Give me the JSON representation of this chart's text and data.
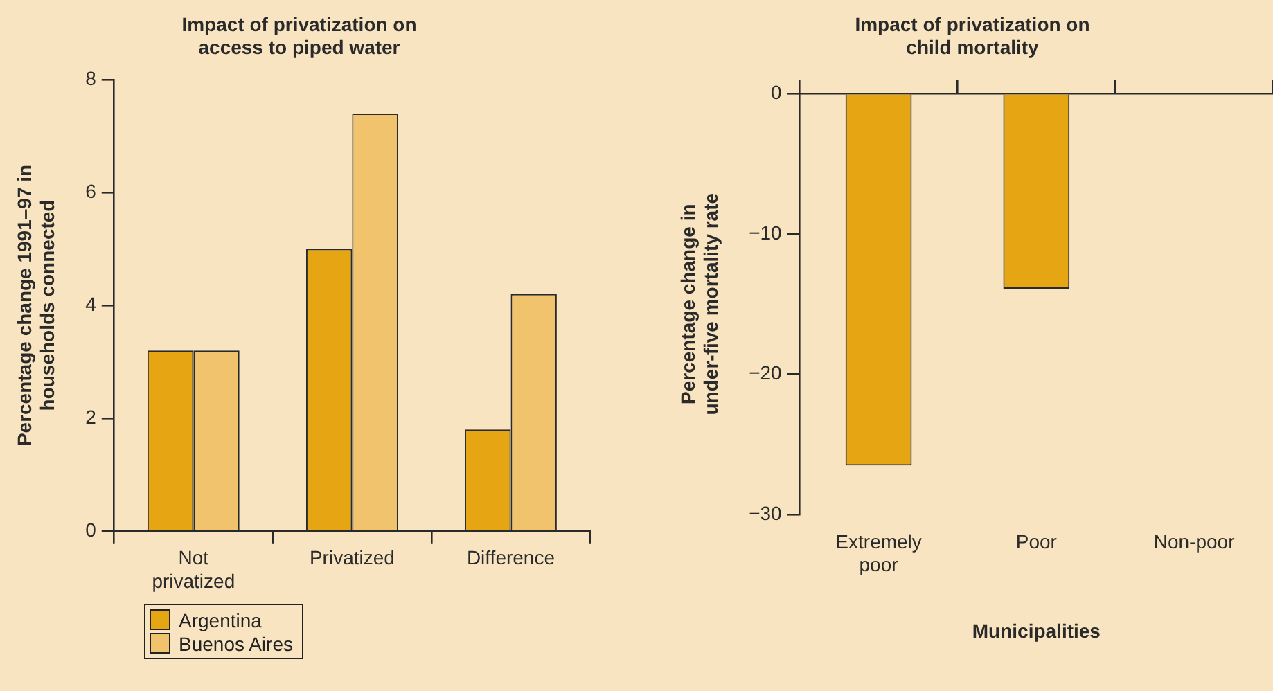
{
  "chart_data": [
    {
      "type": "bar",
      "title": "Impact of privatization on access to piped water",
      "ylabel": "Percentage change 1991–97 in households connected",
      "categories": [
        "Not privatized",
        "Privatized",
        "Difference"
      ],
      "series": [
        {
          "name": "Argentina",
          "color": "#e6a614",
          "values": [
            3.2,
            5.0,
            1.8
          ]
        },
        {
          "name": "Buenos Aires",
          "color": "#f0c36c",
          "values": [
            3.2,
            7.4,
            4.2
          ]
        }
      ],
      "ylim": [
        0,
        8
      ],
      "yticks": [
        0,
        2,
        4,
        6,
        8
      ],
      "legend": "bottom left"
    },
    {
      "type": "bar",
      "title": "Impact of privatization on child mortality",
      "xlabel": "Municipalities",
      "ylabel": "Percentage change in under-five mortality rate",
      "categories": [
        "Extremely poor",
        "Poor",
        "Non-poor"
      ],
      "values": [
        -26.5,
        -13.9,
        0
      ],
      "color": "#e6a614",
      "ylim": [
        -30,
        0
      ],
      "yticks": [
        {
          "value": 0,
          "label": "0"
        },
        {
          "value": -10,
          "label": "−10"
        },
        {
          "value": -20,
          "label": "−20"
        },
        {
          "value": -30,
          "label": "−30"
        }
      ]
    }
  ]
}
